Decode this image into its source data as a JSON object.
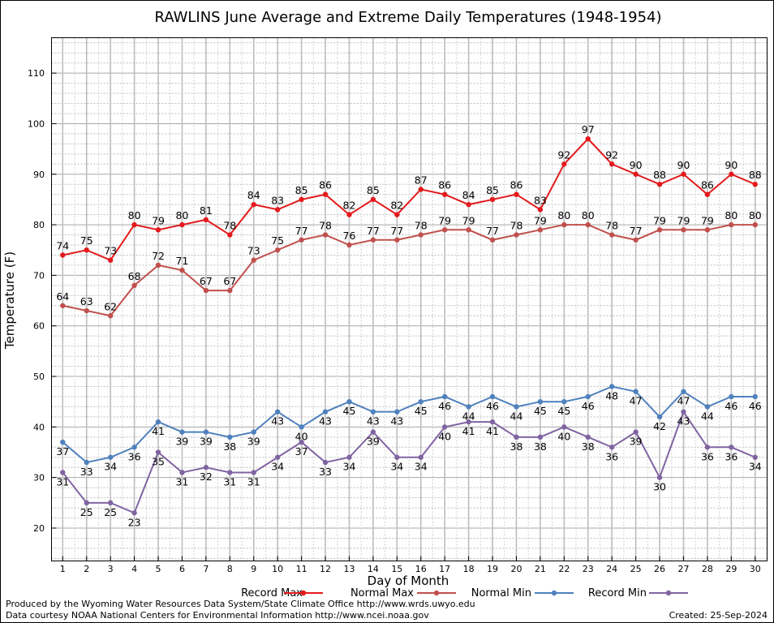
{
  "chart_data": {
    "type": "line",
    "title": "RAWLINS June Average and Extreme Daily Temperatures (1948-1954)",
    "xlabel": "Day of Month",
    "ylabel": "Temperature (F)",
    "ylim": [
      13.5,
      117
    ],
    "yticks": [
      20,
      30,
      40,
      50,
      60,
      70,
      80,
      90,
      100,
      110
    ],
    "x": [
      1,
      2,
      3,
      4,
      5,
      6,
      7,
      8,
      9,
      10,
      11,
      12,
      13,
      14,
      15,
      16,
      17,
      18,
      19,
      20,
      21,
      22,
      23,
      24,
      25,
      26,
      27,
      28,
      29,
      30
    ],
    "grid": true,
    "legend_position": "bottom",
    "series": [
      {
        "name": "Record Max",
        "color": "#e41a1c",
        "label_side": "above",
        "values": [
          74,
          75,
          73,
          80,
          79,
          80,
          81,
          78,
          84,
          83,
          85,
          86,
          82,
          85,
          82,
          87,
          86,
          84,
          85,
          86,
          83,
          92,
          97,
          92,
          90,
          88,
          90,
          86,
          90,
          88
        ]
      },
      {
        "name": "Normal Max",
        "color": "#c0504d",
        "label_side": "above",
        "values": [
          64,
          63,
          62,
          68,
          72,
          71,
          67,
          67,
          73,
          75,
          77,
          78,
          76,
          77,
          77,
          78,
          79,
          79,
          77,
          78,
          79,
          80,
          80,
          78,
          77,
          79,
          79,
          79,
          80,
          80
        ]
      },
      {
        "name": "Normal Min",
        "color": "#4f81bd",
        "label_side": "below",
        "values": [
          37,
          33,
          34,
          36,
          41,
          39,
          39,
          38,
          39,
          43,
          40,
          43,
          45,
          43,
          43,
          45,
          46,
          44,
          46,
          44,
          45,
          45,
          46,
          48,
          47,
          42,
          47,
          44,
          46,
          46
        ]
      },
      {
        "name": "Record Min",
        "color": "#8064a2",
        "label_side": "below",
        "values": [
          31,
          25,
          25,
          23,
          35,
          31,
          32,
          31,
          31,
          34,
          37,
          33,
          34,
          39,
          34,
          34,
          40,
          41,
          41,
          38,
          38,
          40,
          38,
          36,
          39,
          30,
          43,
          36,
          36,
          34
        ]
      }
    ]
  },
  "footer": {
    "line1": "Produced by the Wyoming Water Resources Data System/State Climate Office http://www.wrds.uwyo.edu",
    "line2": "Data courtesy NOAA National Centers for Environmental Information http://www.ncei.noaa.gov",
    "created": "Created:  25-Sep-2024"
  }
}
